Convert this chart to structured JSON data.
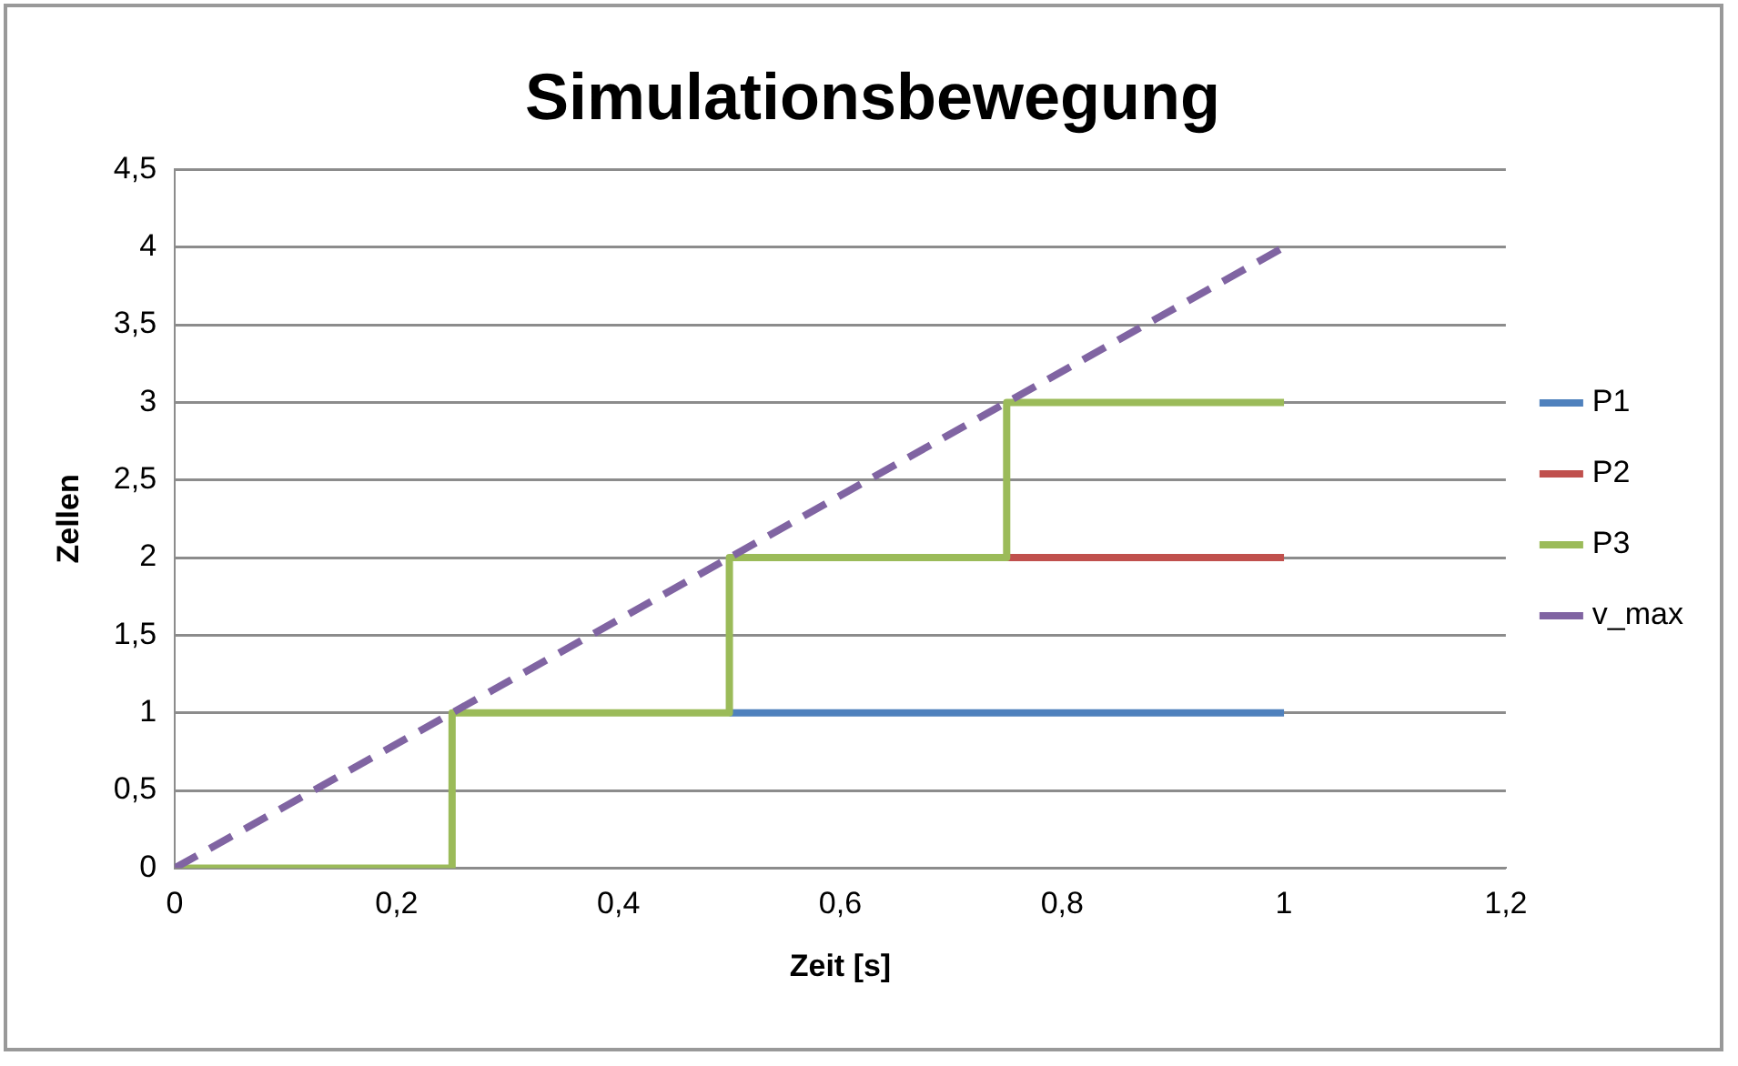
{
  "chart_data": {
    "type": "step",
    "title": "Simulationsbewegung",
    "xlabel": "Zeit [s]",
    "ylabel": "Zellen",
    "x": [
      0,
      0.25,
      0.5,
      0.75,
      1
    ],
    "series": [
      {
        "name": "P1",
        "color": "#4f81bd",
        "values": [
          null,
          null,
          1,
          1,
          1
        ]
      },
      {
        "name": "P2",
        "color": "#c0504d",
        "values": [
          null,
          null,
          null,
          2,
          2
        ]
      },
      {
        "name": "P3",
        "color": "#9bbb59",
        "values": [
          0,
          1,
          2,
          3,
          3
        ]
      },
      {
        "name": "v_max",
        "type": "line",
        "line_style": "dashed",
        "color": "#8064a2",
        "x": [
          0,
          1
        ],
        "values": [
          0,
          4
        ]
      }
    ],
    "xlim": [
      0,
      1.2
    ],
    "xticks": [
      0,
      {
        "value": 0.2,
        "label": "0,2"
      },
      {
        "value": 0.4,
        "label": "0,4"
      },
      {
        "value": 0.6,
        "label": "0,6"
      },
      {
        "value": 0.8,
        "label": "0,8"
      },
      1,
      {
        "value": 1.2,
        "label": "1,2"
      }
    ],
    "ylim": [
      0,
      4.5
    ],
    "yticks": [
      0,
      {
        "value": 0.5,
        "label": "0,5"
      },
      1,
      {
        "value": 1.5,
        "label": "1,5"
      },
      2,
      {
        "value": 2.5,
        "label": "2,5"
      },
      3,
      {
        "value": 3.5,
        "label": "3,5"
      },
      4,
      {
        "value": 4.5,
        "label": "4,5"
      }
    ],
    "grid": "y",
    "legend": "right",
    "marker": "none"
  }
}
